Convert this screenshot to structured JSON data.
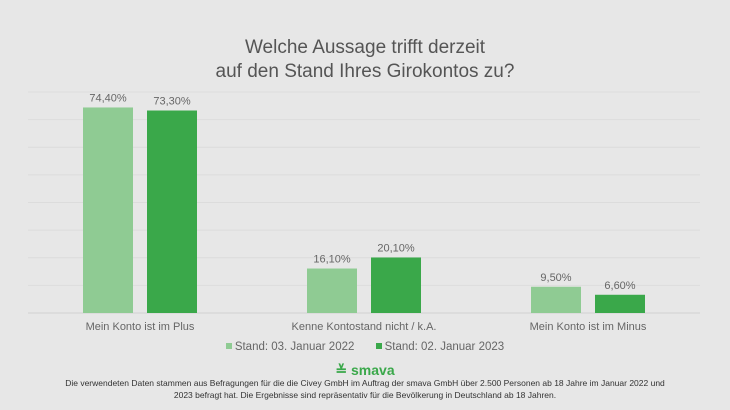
{
  "chart_data": {
    "type": "bar",
    "title_lines": [
      "Welche Aussage trifft derzeit",
      "auf den Stand Ihres Girokontos zu?"
    ],
    "categories": [
      "Mein Konto ist im Plus",
      "Kenne Kontostand nicht / k.A.",
      "Mein Konto ist im Minus"
    ],
    "series": [
      {
        "name": "Stand: 03. Januar 2022",
        "values": [
          74.4,
          16.1,
          9.5
        ],
        "labels": [
          "74,40%",
          "16,10%",
          "9,50%"
        ],
        "color": "#8fcb93"
      },
      {
        "name": "Stand: 02. Januar 2023",
        "values": [
          73.3,
          20.1,
          6.6
        ],
        "labels": [
          "73,30%",
          "20,10%",
          "6,60%"
        ],
        "color": "#3aa84a"
      }
    ],
    "ylim": [
      0,
      80
    ],
    "grid": true,
    "legend": "bottom"
  },
  "brand": "smava",
  "footnote": "Die verwendeten Daten stammen aus Befragungen für die die Civey GmbH im Auftrag der smava GmbH über 2.500 Personen ab 18 Jahre im Januar 2022 und 2023 befragt hat. Die Ergebnisse sind repräsentativ für die Bevölkerung in Deutschland ab 18 Jahren."
}
